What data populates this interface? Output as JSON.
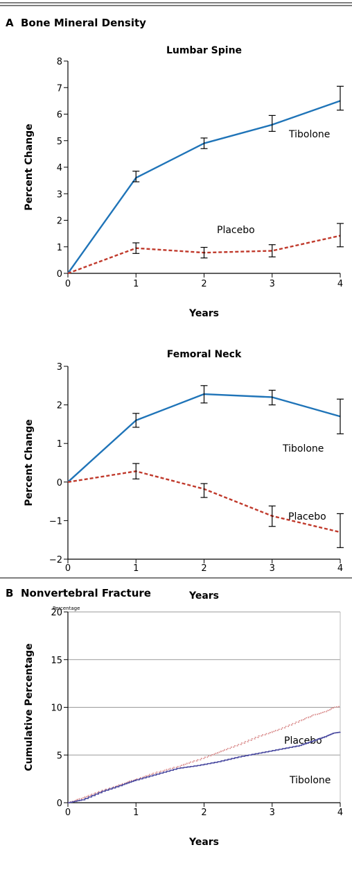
{
  "panels": {
    "a_label": "A",
    "a_title": "Bone Mineral Density",
    "b_label": "B",
    "b_title": "Nonvertebral Fracture"
  },
  "colors": {
    "tibolone_bmd": "#1f74b8",
    "placebo_bmd": "#c0392b",
    "tibolone_fx": "#4a4aa0",
    "placebo_fx": "#d98a8a",
    "grid": "#999999"
  },
  "chart_data": [
    {
      "id": "lumbar",
      "type": "line",
      "title": "Lumbar Spine",
      "xlabel": "Years",
      "ylabel": "Percent Change",
      "xlim": [
        0,
        4
      ],
      "ylim": [
        0,
        8
      ],
      "xticks": [
        0,
        1,
        2,
        3,
        4
      ],
      "yticks": [
        0,
        1,
        2,
        3,
        4,
        5,
        6,
        7,
        8
      ],
      "grid": false,
      "series": [
        {
          "name": "Tibolone",
          "x": [
            0,
            1,
            2,
            3,
            4
          ],
          "values": [
            0,
            3.6,
            4.9,
            5.6,
            6.5
          ],
          "err_low": [
            0,
            3.45,
            4.7,
            5.35,
            6.15
          ],
          "err_high": [
            0,
            3.85,
            5.1,
            5.95,
            7.05
          ]
        },
        {
          "name": "Placebo",
          "x": [
            0,
            1,
            2,
            3,
            4
          ],
          "values": [
            0,
            0.95,
            0.78,
            0.85,
            1.42
          ],
          "err_low": [
            0,
            0.75,
            0.58,
            0.62,
            1.0
          ],
          "err_high": [
            0,
            1.15,
            0.98,
            1.08,
            1.88
          ]
        }
      ]
    },
    {
      "id": "femoral",
      "type": "line",
      "title": "Femoral Neck",
      "xlabel": "Years",
      "ylabel": "Percent Change",
      "xlim": [
        0,
        4
      ],
      "ylim": [
        -2,
        3
      ],
      "xticks": [
        0,
        1,
        2,
        3,
        4
      ],
      "yticks": [
        -2,
        -1,
        0,
        1,
        2,
        3
      ],
      "ytick_labels": [
        "−2",
        "−1",
        "0",
        "1",
        "2",
        "3"
      ],
      "grid": false,
      "series": [
        {
          "name": "Tibolone",
          "x": [
            0,
            1,
            2,
            3,
            4
          ],
          "values": [
            0,
            1.6,
            2.28,
            2.2,
            1.7
          ],
          "err_low": [
            0,
            1.42,
            2.05,
            2.0,
            1.25
          ],
          "err_high": [
            0,
            1.78,
            2.5,
            2.38,
            2.15
          ]
        },
        {
          "name": "Placebo",
          "x": [
            0,
            1,
            2,
            3,
            4
          ],
          "values": [
            0,
            0.28,
            -0.18,
            -0.88,
            -1.3
          ],
          "err_low": [
            0,
            0.08,
            -0.4,
            -1.15,
            -1.7
          ],
          "err_high": [
            0,
            0.48,
            -0.04,
            -0.62,
            -0.82
          ]
        }
      ]
    },
    {
      "id": "fracture",
      "type": "line",
      "title": "",
      "xlabel": "Years",
      "ylabel": "Cumulative Percentage",
      "small_label": "Percentage",
      "xlim": [
        0,
        4
      ],
      "ylim": [
        0,
        20
      ],
      "xticks": [
        0,
        1,
        2,
        3,
        4
      ],
      "yticks": [
        0,
        5,
        10,
        15,
        20
      ],
      "grid": true,
      "series": [
        {
          "name": "Placebo",
          "x": [
            0,
            0.2,
            0.5,
            0.8,
            1.0,
            1.3,
            1.6,
            1.9,
            2.2,
            2.5,
            2.8,
            3.1,
            3.4,
            3.6,
            3.8,
            3.9,
            4.0
          ],
          "values": [
            0,
            0.5,
            1.3,
            2.0,
            2.5,
            3.2,
            3.8,
            4.5,
            5.3,
            6.1,
            7.0,
            7.7,
            8.6,
            9.2,
            9.6,
            10.0,
            10.1
          ]
        },
        {
          "name": "Tibolone",
          "x": [
            0,
            0.2,
            0.5,
            0.8,
            1.0,
            1.3,
            1.6,
            1.9,
            2.2,
            2.5,
            2.8,
            3.1,
            3.4,
            3.6,
            3.8,
            3.9,
            4.0
          ],
          "values": [
            0,
            0.3,
            1.2,
            1.9,
            2.4,
            3.0,
            3.6,
            3.9,
            4.3,
            4.8,
            5.2,
            5.6,
            6.0,
            6.5,
            7.0,
            7.3,
            7.4
          ]
        }
      ]
    }
  ]
}
